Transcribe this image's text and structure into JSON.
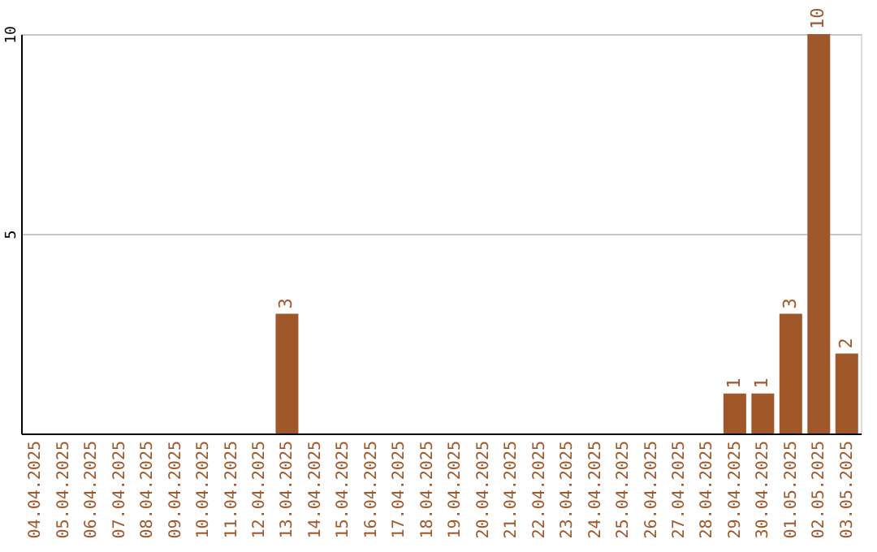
{
  "chart_data": {
    "type": "bar",
    "categories": [
      "04.04.2025",
      "05.04.2025",
      "06.04.2025",
      "07.04.2025",
      "08.04.2025",
      "09.04.2025",
      "10.04.2025",
      "11.04.2025",
      "12.04.2025",
      "13.04.2025",
      "14.04.2025",
      "15.04.2025",
      "16.04.2025",
      "17.04.2025",
      "18.04.2025",
      "19.04.2025",
      "20.04.2025",
      "21.04.2025",
      "22.04.2025",
      "23.04.2025",
      "24.04.2025",
      "25.04.2025",
      "26.04.2025",
      "27.04.2025",
      "28.04.2025",
      "29.04.2025",
      "30.04.2025",
      "01.05.2025",
      "02.05.2025",
      "03.05.2025"
    ],
    "values": [
      0,
      0,
      0,
      0,
      0,
      0,
      0,
      0,
      0,
      3,
      0,
      0,
      0,
      0,
      0,
      0,
      0,
      0,
      0,
      0,
      0,
      0,
      0,
      0,
      0,
      1,
      1,
      3,
      10,
      2
    ],
    "value_labels": [
      null,
      null,
      null,
      null,
      null,
      null,
      null,
      null,
      null,
      "3",
      null,
      null,
      null,
      null,
      null,
      null,
      null,
      null,
      null,
      null,
      null,
      null,
      null,
      null,
      null,
      "1",
      "1",
      "3",
      "10",
      "2"
    ],
    "color": "#a0572a",
    "ylim": [
      0,
      10
    ],
    "yticks": [
      5,
      10
    ],
    "grid": "y"
  }
}
